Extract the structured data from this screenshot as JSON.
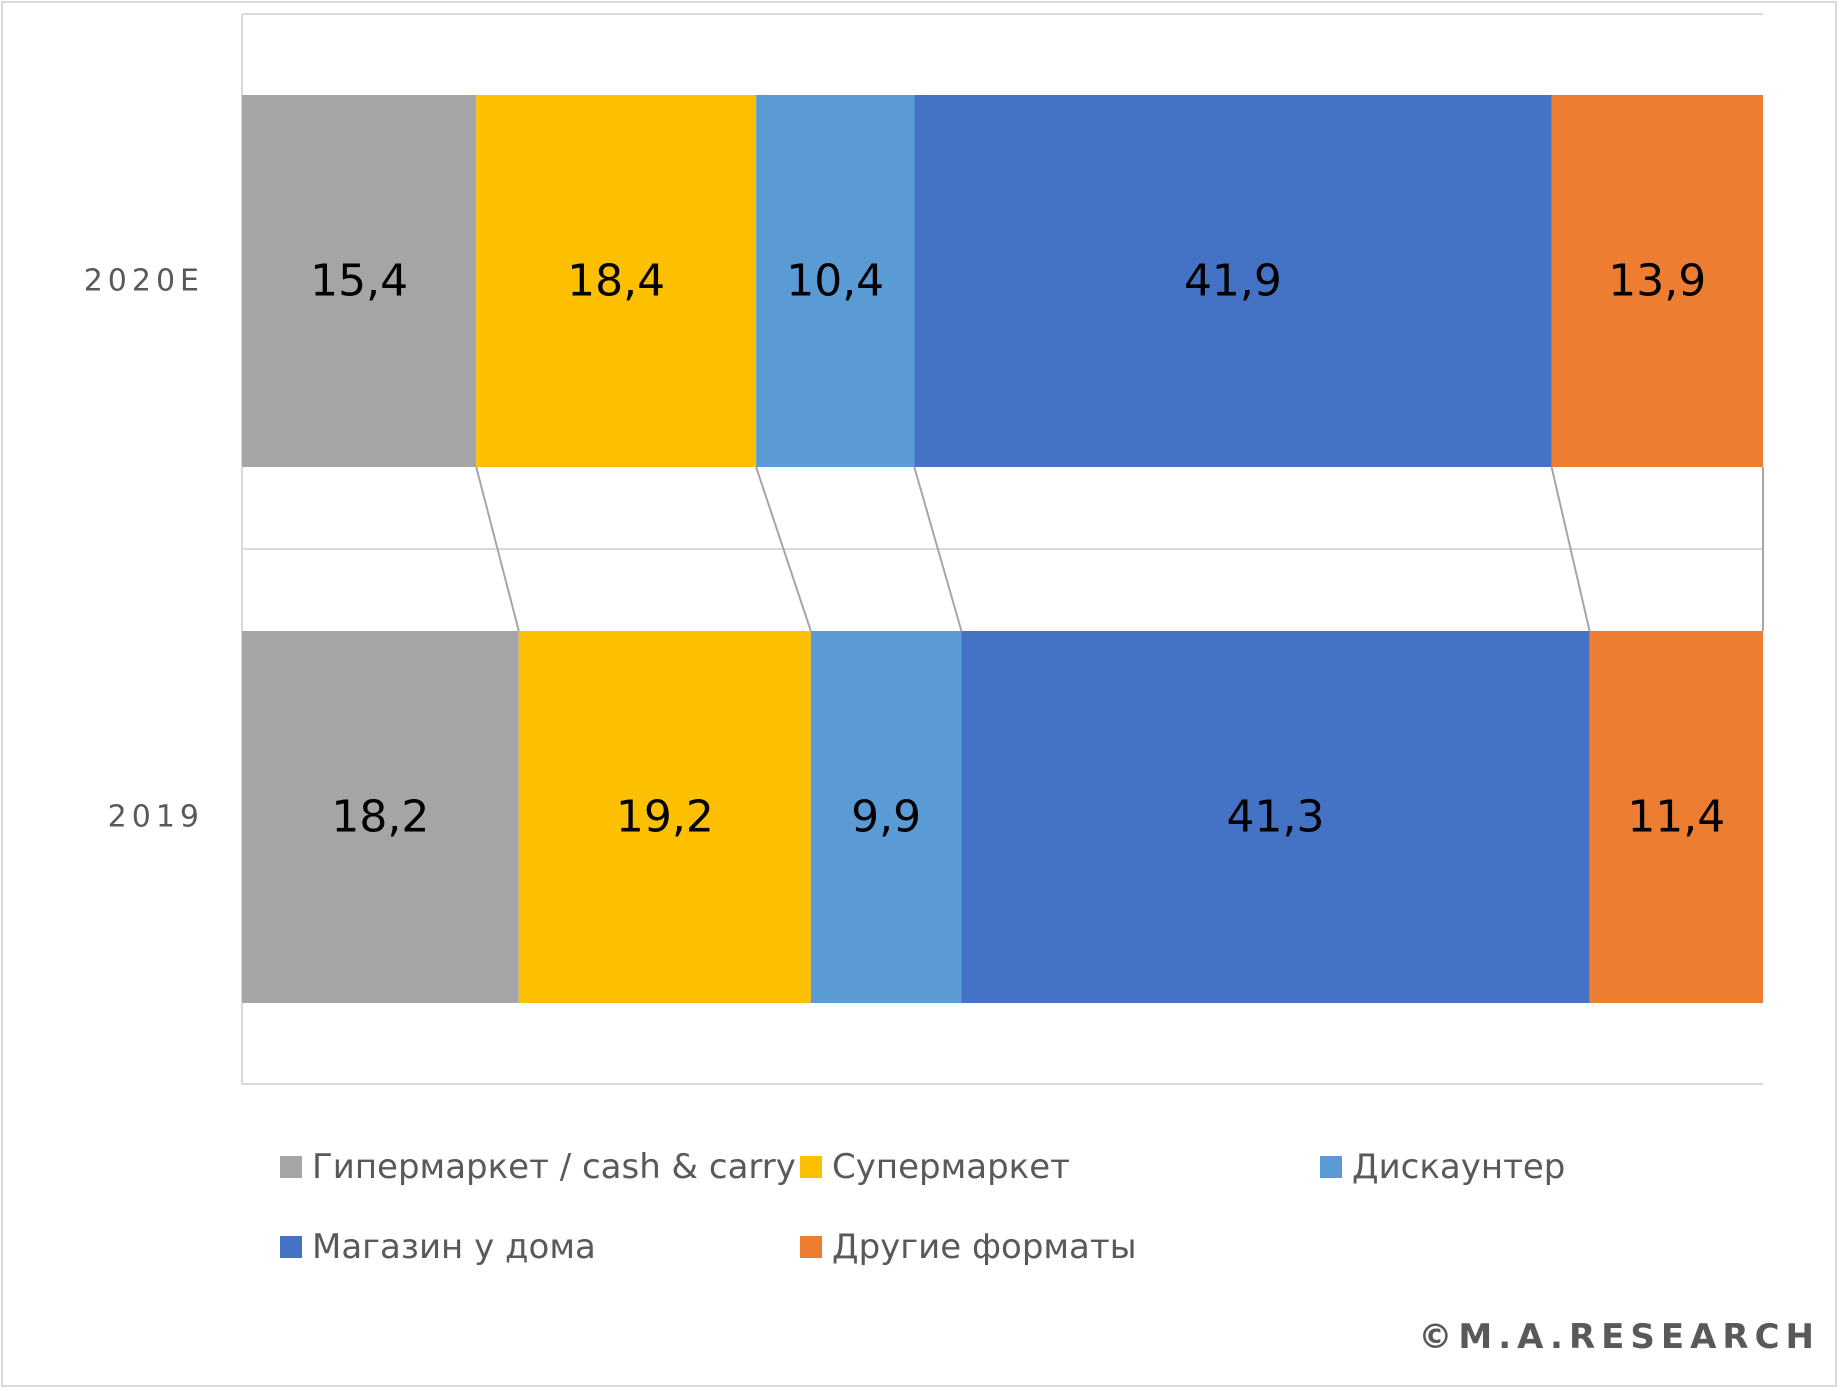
{
  "chart_data": {
    "type": "bar",
    "orientation": "horizontal",
    "stacked": "percent",
    "categories": [
      "2020E",
      "2019"
    ],
    "series": [
      {
        "name": "Гипермаркет / cash & carry",
        "color": "#a5a5a5",
        "values": [
          "15,4",
          "18,2"
        ],
        "numeric": [
          15.4,
          18.2
        ]
      },
      {
        "name": "Супермаркет",
        "color": "#fcc000",
        "values": [
          "18,4",
          "19,2"
        ],
        "numeric": [
          18.4,
          19.2
        ]
      },
      {
        "name": "Дискаунтер",
        "color": "#5b9bd5",
        "values": [
          "10,4",
          "9,9"
        ],
        "numeric": [
          10.4,
          9.9
        ]
      },
      {
        "name": "Магазин у дома",
        "color": "#4472c4",
        "values": [
          "41,9",
          "41,3"
        ],
        "numeric": [
          41.9,
          41.3
        ]
      },
      {
        "name": "Другие форматы",
        "color": "#ed7d31",
        "values": [
          "13,9",
          "11,4"
        ],
        "numeric": [
          13.9,
          11.4
        ]
      }
    ],
    "xlim": [
      0,
      100
    ],
    "series_lines": true,
    "legend": "bottom"
  },
  "watermark": "©M.A.RESEARCH"
}
